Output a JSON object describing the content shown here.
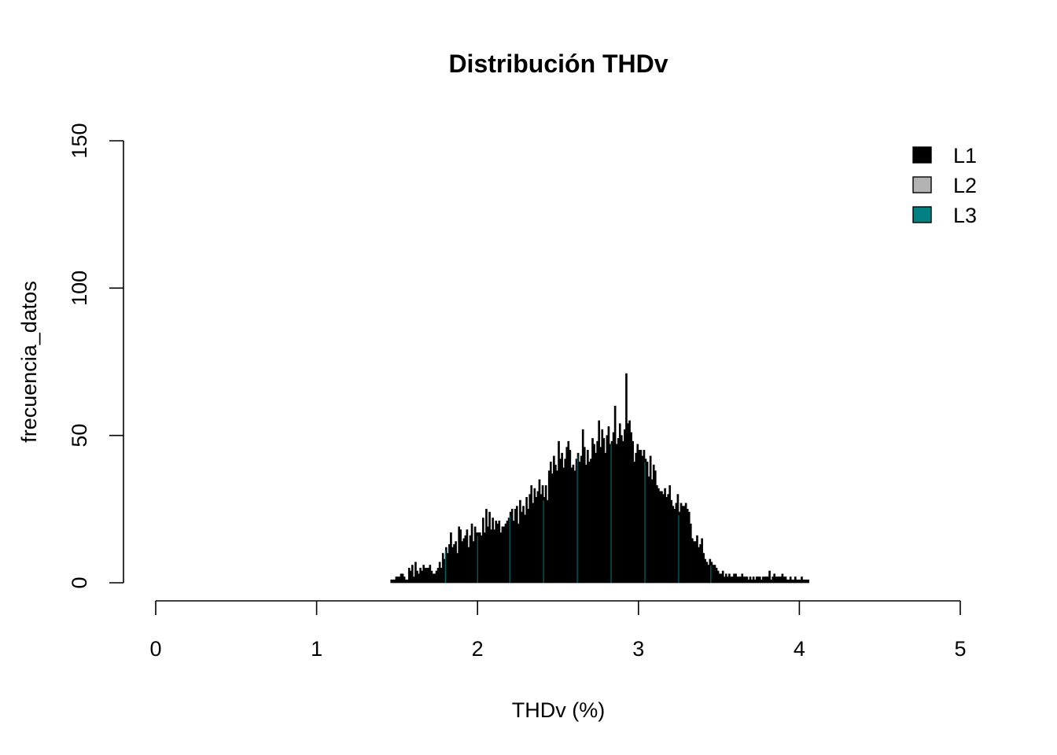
{
  "chart_data": {
    "type": "bar",
    "title": "Distribución THDv",
    "xlabel": "THDv (%)",
    "ylabel": "frecuencia_datos",
    "xlim": [
      0,
      5
    ],
    "ylim": [
      0,
      150
    ],
    "x_ticks": [
      0,
      1,
      2,
      3,
      4,
      5
    ],
    "y_ticks": [
      0,
      50,
      100,
      150
    ],
    "bin_width": 0.01,
    "x_start": 1.46,
    "legend_position": "top-right",
    "series": [
      {
        "name": "L1",
        "color": "#000000",
        "values": [
          1,
          1,
          1,
          2,
          2,
          2,
          3,
          3,
          2,
          1,
          1,
          5,
          4,
          6,
          2,
          7,
          4,
          3,
          5,
          4,
          6,
          5,
          5,
          5,
          6,
          4,
          3,
          3,
          4,
          5,
          7,
          5,
          10,
          8,
          12,
          10,
          13,
          17,
          12,
          13,
          14,
          10,
          19,
          18,
          14,
          15,
          16,
          18,
          12,
          16,
          20,
          14,
          19,
          17,
          17,
          17,
          16,
          22,
          17,
          25,
          19,
          24,
          18,
          22,
          18,
          21,
          20,
          21,
          17,
          19,
          19,
          20,
          21,
          22,
          24,
          25,
          21,
          25,
          26,
          20,
          28,
          24,
          26,
          23,
          29,
          25,
          30,
          33,
          27,
          32,
          29,
          31,
          35,
          30,
          33,
          29,
          33,
          28,
          38,
          41,
          37,
          43,
          40,
          38,
          48,
          42,
          44,
          39,
          42,
          46,
          48,
          45,
          39,
          40,
          38,
          42,
          44,
          41,
          43,
          52,
          46,
          40,
          45,
          41,
          42,
          49,
          47,
          44,
          48,
          55,
          46,
          52,
          49,
          44,
          50,
          53,
          47,
          48,
          51,
          60,
          47,
          49,
          54,
          50,
          48,
          52,
          71,
          54,
          55,
          51,
          48,
          41,
          44,
          47,
          45,
          45,
          43,
          45,
          42,
          41,
          36,
          43,
          35,
          40,
          38,
          33,
          32,
          31,
          31,
          30,
          32,
          29,
          30,
          33,
          28,
          26,
          25,
          27,
          30,
          24,
          27,
          26,
          26,
          27,
          25,
          24,
          20,
          15,
          14,
          14,
          16,
          12,
          13,
          15,
          10,
          8,
          7,
          6,
          8,
          7,
          6,
          6,
          5,
          4,
          3,
          3,
          4,
          2,
          3,
          2,
          3,
          2,
          2,
          3,
          3,
          2,
          2,
          2,
          3,
          2,
          2,
          2,
          1,
          2,
          1,
          2,
          1,
          2,
          2,
          2,
          1,
          2,
          2,
          2,
          2,
          4,
          1,
          2,
          3,
          2,
          2,
          2,
          2,
          3,
          2,
          2,
          1,
          1,
          2,
          1,
          1,
          2,
          1,
          1,
          1,
          2,
          1,
          1,
          1,
          1
        ]
      },
      {
        "name": "L2",
        "color": "#b3b3b3",
        "values": []
      },
      {
        "name": "L3",
        "color": "#008080",
        "values": []
      }
    ]
  }
}
